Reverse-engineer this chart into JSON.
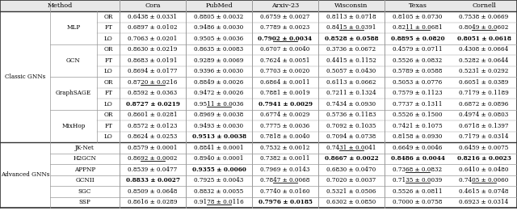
{
  "col_headers": [
    "Method",
    "",
    "",
    "Cora",
    "PubMed",
    "Arxiv-23",
    "Wisconsin",
    "Texas",
    "Cornell"
  ],
  "sections": [
    {
      "group_label": "Classic GNNs",
      "models": [
        {
          "name": "MLP",
          "rows": [
            {
              "type": "OR",
              "values": [
                "0.6438 ± 0.0331",
                "0.8805 ± 0.0032",
                "0.6759 ± 0.0027",
                "0.8113 ± 0.0718",
                "0.8105 ± 0.0730",
                "0.7538 ± 0.0669"
              ],
              "bold": [
                false,
                false,
                false,
                false,
                false,
                false
              ],
              "underline": [
                false,
                false,
                false,
                false,
                false,
                false
              ]
            },
            {
              "type": "FT",
              "values": [
                "0.6897 ± 0.0102",
                "0.9486 ± 0.0030",
                "0.7789 ± 0.0023",
                "0.8415 ± 0.0391",
                "0.8211 ± 0.0681",
                "0.8049 ± 0.0602"
              ],
              "bold": [
                false,
                false,
                false,
                false,
                false,
                false
              ],
              "underline": [
                false,
                false,
                false,
                true,
                true,
                true
              ]
            },
            {
              "type": "LO",
              "values": [
                "0.7063 ± 0.0201",
                "0.9505 ± 0.0036",
                "0.7902 ± 0.0034",
                "0.8528 ± 0.0588",
                "0.8895 ± 0.0820",
                "0.8051 ± 0.0618"
              ],
              "bold": [
                false,
                false,
                true,
                true,
                true,
                true
              ],
              "underline": [
                false,
                false,
                true,
                false,
                false,
                false
              ]
            }
          ]
        },
        {
          "name": "GCN",
          "rows": [
            {
              "type": "OR",
              "values": [
                "0.8630 ± 0.0219",
                "0.8635 ± 0.0083",
                "0.6707 ± 0.0040",
                "0.3736 ± 0.0672",
                "0.4579 ± 0.0711",
                "0.4308 ± 0.0664"
              ],
              "bold": [
                false,
                false,
                false,
                false,
                false,
                false
              ],
              "underline": [
                false,
                false,
                false,
                false,
                false,
                false
              ]
            },
            {
              "type": "FT",
              "values": [
                "0.8683 ± 0.0191",
                "0.9289 ± 0.0069",
                "0.7624 ± 0.0051",
                "0.4415 ± 0.1152",
                "0.5526 ± 0.0832",
                "0.5282 ± 0.0644"
              ],
              "bold": [
                false,
                false,
                false,
                false,
                false,
                false
              ],
              "underline": [
                false,
                false,
                false,
                false,
                false,
                false
              ]
            },
            {
              "type": "LO",
              "values": [
                "0.8694 ± 0.0177",
                "0.9396 ± 0.0030",
                "0.7703 ± 0.0020",
                "0.5057 ± 0.0430",
                "0.5789 ± 0.0588",
                "0.5231 ± 0.0292"
              ],
              "bold": [
                false,
                false,
                false,
                false,
                false,
                false
              ],
              "underline": [
                false,
                false,
                false,
                false,
                false,
                false
              ]
            }
          ]
        },
        {
          "name": "GraphSAGE",
          "rows": [
            {
              "type": "OR",
              "values": [
                "0.8720 ± 0.0216",
                "0.8849 ± 0.0026",
                "0.6864 ± 0.0011",
                "0.6113 ± 0.0662",
                "0.5053 ± 0.0776",
                "0.6051 ± 0.0389"
              ],
              "bold": [
                false,
                false,
                false,
                false,
                false,
                false
              ],
              "underline": [
                true,
                false,
                false,
                false,
                false,
                false
              ]
            },
            {
              "type": "FT",
              "values": [
                "0.8592 ± 0.0363",
                "0.9472 ± 0.0026",
                "0.7881 ± 0.0019",
                "0.7211 ± 0.1324",
                "0.7579 ± 0.1123",
                "0.7179 ± 0.1189"
              ],
              "bold": [
                false,
                false,
                false,
                false,
                false,
                false
              ],
              "underline": [
                false,
                false,
                false,
                false,
                false,
                false
              ]
            },
            {
              "type": "LO",
              "values": [
                "0.8727 ± 0.0219",
                "0.9511 ± 0.0036",
                "0.7941 ± 0.0029",
                "0.7434 ± 0.0930",
                "0.7737 ± 0.1311",
                "0.6872 ± 0.0896"
              ],
              "bold": [
                true,
                false,
                true,
                false,
                false,
                false
              ],
              "underline": [
                false,
                true,
                false,
                false,
                false,
                false
              ]
            }
          ]
        },
        {
          "name": "MixHop",
          "rows": [
            {
              "type": "OR",
              "values": [
                "0.8601 ± 0.0281",
                "0.8969 ± 0.0038",
                "0.6774 ± 0.0029",
                "0.5736 ± 0.1183",
                "0.5526 ± 0.1500",
                "0.4974 ± 0.0803"
              ],
              "bold": [
                false,
                false,
                false,
                false,
                false,
                false
              ],
              "underline": [
                false,
                false,
                false,
                false,
                false,
                false
              ]
            },
            {
              "type": "FT",
              "values": [
                "0.8572 ± 0.0123",
                "0.9493 ± 0.0030",
                "0.7775 ± 0.0036",
                "0.7092 ± 0.1035",
                "0.7421 ± 0.1075",
                "0.6718 ± 0.1397"
              ],
              "bold": [
                false,
                false,
                false,
                false,
                false,
                false
              ],
              "underline": [
                false,
                false,
                false,
                false,
                false,
                false
              ]
            },
            {
              "type": "LO",
              "values": [
                "0.8624 ± 0.0253",
                "0.9513 ± 0.0038",
                "0.7818 ± 0.0040",
                "0.7094 ± 0.0738",
                "0.8158 ± 0.0930",
                "0.7179 ± 0.0314"
              ],
              "bold": [
                false,
                true,
                false,
                false,
                false,
                false
              ],
              "underline": [
                false,
                false,
                false,
                false,
                false,
                false
              ]
            }
          ]
        }
      ]
    },
    {
      "group_label": "Advanced GNNs",
      "models": [
        {
          "name": "JK-Net",
          "rows": [
            {
              "type": "",
              "values": [
                "0.8579 ± 0.0001",
                "0.8841 ± 0.0001",
                "0.7532 ± 0.0012",
                "0.7431 ± 0.0041",
                "0.6649 ± 0.0046",
                "0.6459 ± 0.0075"
              ],
              "bold": [
                false,
                false,
                false,
                false,
                false,
                false
              ],
              "underline": [
                false,
                false,
                false,
                true,
                false,
                false
              ]
            }
          ]
        },
        {
          "name": "H2GCN",
          "rows": [
            {
              "type": "",
              "values": [
                "0.8692 ± 0.0002",
                "0.8940 ± 0.0001",
                "0.7382 ± 0.0011",
                "0.8667 ± 0.0022",
                "0.8486 ± 0.0044",
                "0.8216 ± 0.0023"
              ],
              "bold": [
                false,
                false,
                false,
                true,
                true,
                true
              ],
              "underline": [
                true,
                false,
                false,
                false,
                false,
                false
              ]
            }
          ]
        },
        {
          "name": "APPNP",
          "rows": [
            {
              "type": "",
              "values": [
                "0.8539 ± 0.0477",
                "0.9355 ± 0.0060",
                "0.7969 ± 0.0143",
                "0.6830 ± 0.0470",
                "0.7368 ± 0.0832",
                "0.6410 ± 0.0480"
              ],
              "bold": [
                false,
                true,
                false,
                false,
                false,
                false
              ],
              "underline": [
                false,
                false,
                false,
                false,
                true,
                false
              ]
            }
          ]
        },
        {
          "name": "GCNII",
          "rows": [
            {
              "type": "",
              "values": [
                "0.8833 ± 0.0027",
                "0.7925 ± 0.0043",
                "0.7847 ± 0.0068",
                "0.7020 ± 0.0037",
                "0.7135 ± 0.0039",
                "0.7405 ± 0.0060"
              ],
              "bold": [
                true,
                false,
                false,
                false,
                false,
                false
              ],
              "underline": [
                false,
                false,
                true,
                false,
                true,
                true
              ]
            }
          ]
        },
        {
          "name": "SGC",
          "rows": [
            {
              "type": "",
              "values": [
                "0.8509 ± 0.0648",
                "0.8832 ± 0.0055",
                "0.7740 ± 0.0160",
                "0.5321 ± 0.0506",
                "0.5526 ± 0.0811",
                "0.4615 ± 0.0748"
              ],
              "bold": [
                false,
                false,
                false,
                false,
                false,
                false
              ],
              "underline": [
                false,
                false,
                false,
                false,
                false,
                false
              ]
            }
          ]
        },
        {
          "name": "SSP",
          "rows": [
            {
              "type": "",
              "values": [
                "0.8616 ± 0.0289",
                "0.9178 ± 0.0116",
                "0.7976 ± 0.0185",
                "0.6302 ± 0.0850",
                "0.7000 ± 0.0758",
                "0.6923 ± 0.0314"
              ],
              "bold": [
                false,
                false,
                true,
                false,
                false,
                false
              ],
              "underline": [
                false,
                true,
                false,
                false,
                false,
                false
              ]
            }
          ]
        }
      ]
    }
  ],
  "font_size": 5.2,
  "header_font_size": 5.8
}
